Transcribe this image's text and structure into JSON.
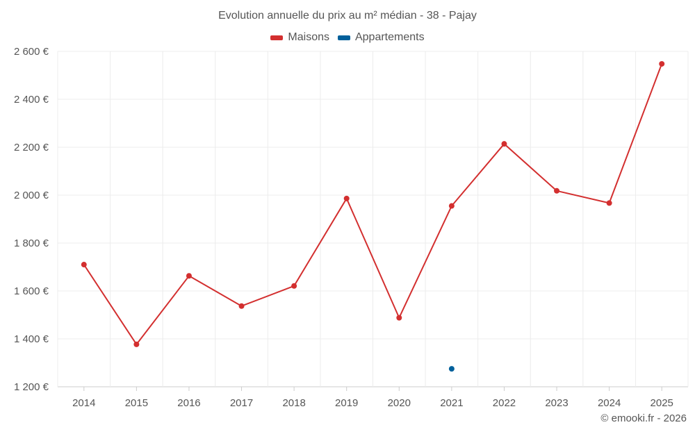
{
  "chart_data": {
    "type": "line",
    "title": "Evolution annuelle du prix au m² médian - 38 - Pajay",
    "categories": [
      "2014",
      "2015",
      "2016",
      "2017",
      "2018",
      "2019",
      "2020",
      "2021",
      "2022",
      "2023",
      "2024",
      "2025"
    ],
    "series": [
      {
        "name": "Maisons",
        "color": "#d32f2f",
        "values": [
          1710,
          1377,
          1663,
          1537,
          1621,
          1986,
          1488,
          1955,
          2214,
          2018,
          1967,
          2548
        ]
      },
      {
        "name": "Appartements",
        "color": "#00609b",
        "values": [
          null,
          null,
          null,
          null,
          null,
          null,
          null,
          1275,
          null,
          null,
          null,
          null
        ]
      }
    ],
    "ylim": [
      1200,
      2600
    ],
    "yticks": [
      1200,
      1400,
      1600,
      1800,
      2000,
      2200,
      2400,
      2600
    ],
    "ytick_labels": [
      "1 200 €",
      "1 400 €",
      "1 600 €",
      "1 800 €",
      "2 000 €",
      "2 200 €",
      "2 400 €",
      "2 600 €"
    ],
    "xlabel": "",
    "ylabel": "",
    "grid": true,
    "legend_position": "top-center"
  },
  "credit": "© emooki.fr - 2026"
}
